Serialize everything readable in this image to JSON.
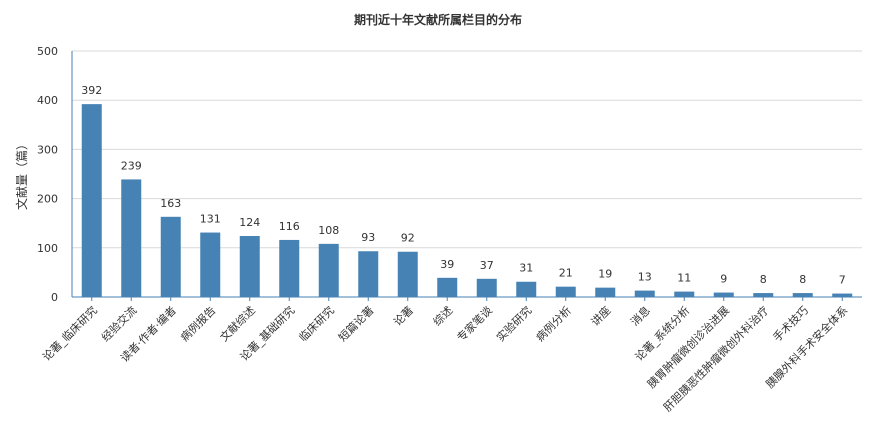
{
  "chart_data": {
    "type": "bar",
    "title": "期刊近十年文献所属栏目的分布",
    "ylabel": "文献量（篇）",
    "xlabel": "",
    "ylim": [
      0,
      500
    ],
    "yticks": [
      0,
      100,
      200,
      300,
      400,
      500
    ],
    "grid": true,
    "bar_color": "#4682b4",
    "categories": [
      "论著_临床研究",
      "经验交流",
      "读者·作者·编者",
      "病例报告",
      "文献综述",
      "论著_基础研究",
      "临床研究",
      "短篇论著",
      "论著",
      "综述",
      "专家笔谈",
      "实验研究",
      "病例分析",
      "讲座",
      "消息",
      "论著_系统分析",
      "胰胃肿瘤微创诊治进展",
      "肝胆胰恶性肿瘤微创外科治疗",
      "手术技巧",
      "胰腺外科手术安全体系"
    ],
    "values": [
      392,
      239,
      163,
      131,
      124,
      116,
      108,
      93,
      92,
      39,
      37,
      31,
      21,
      19,
      13,
      11,
      9,
      8,
      8,
      7
    ]
  }
}
